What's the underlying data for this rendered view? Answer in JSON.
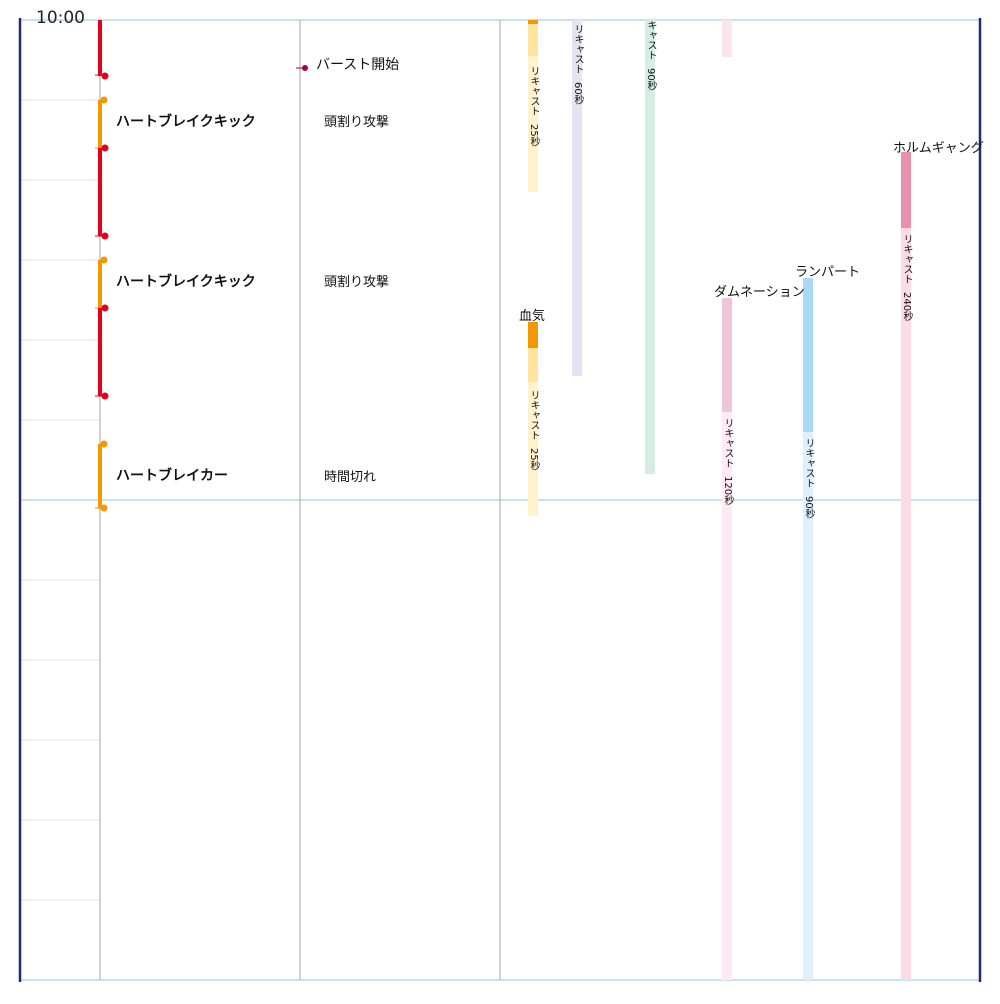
{
  "header": {
    "time_label": "10:00"
  },
  "events": [
    {
      "name": "バースト開始"
    },
    {
      "name": "ハートブレイクキック",
      "note": "頭割り攻撃"
    },
    {
      "name": "ハートブレイクキック",
      "note": "頭割り攻撃"
    },
    {
      "name": "ハートブレイカー",
      "note": "時間切れ"
    }
  ],
  "abilities": [
    {
      "name": "",
      "recast_text": "リキャスト",
      "recast_value": "25秒",
      "color": "#f39800",
      "light": "#fff3cc"
    },
    {
      "name": "",
      "recast_text": "リキャスト",
      "recast_value": "60秒",
      "color": "#c9c9e6",
      "light": "#e3e3f1"
    },
    {
      "name": "",
      "recast_text": "キャスト",
      "recast_value": "90秒",
      "color": "#bfe3d3",
      "light": "#d6ede2"
    },
    {
      "name": "",
      "recast_text": "",
      "recast_value": "",
      "color": "#fbe4ec",
      "light": "#fbe4ec"
    },
    {
      "name": "血気",
      "recast_text": "リキャスト",
      "recast_value": "25秒",
      "color": "#f39800",
      "light": "#fff3cc"
    },
    {
      "name": "ダムネーション",
      "recast_text": "リキャスト",
      "recast_value": "120秒",
      "color": "#eec4da",
      "light": "#fdeaf2"
    },
    {
      "name": "ランパート",
      "recast_text": "リキャスト",
      "recast_value": "90秒",
      "color": "#a9d8f2",
      "light": "#ddf0fb"
    },
    {
      "name": "ホルムギャング",
      "recast_text": "リキャスト",
      "recast_value": "240秒",
      "color": "#ea8fac",
      "light": "#fcdbe5"
    }
  ],
  "colors": {
    "frame": "#1f2a7a",
    "grid": "#e0e0e0",
    "minute": "#b8d7ee",
    "column": "#b5b5b5",
    "danger": "#e5001e",
    "warn": "#f39800",
    "burst": "#a3004f"
  }
}
